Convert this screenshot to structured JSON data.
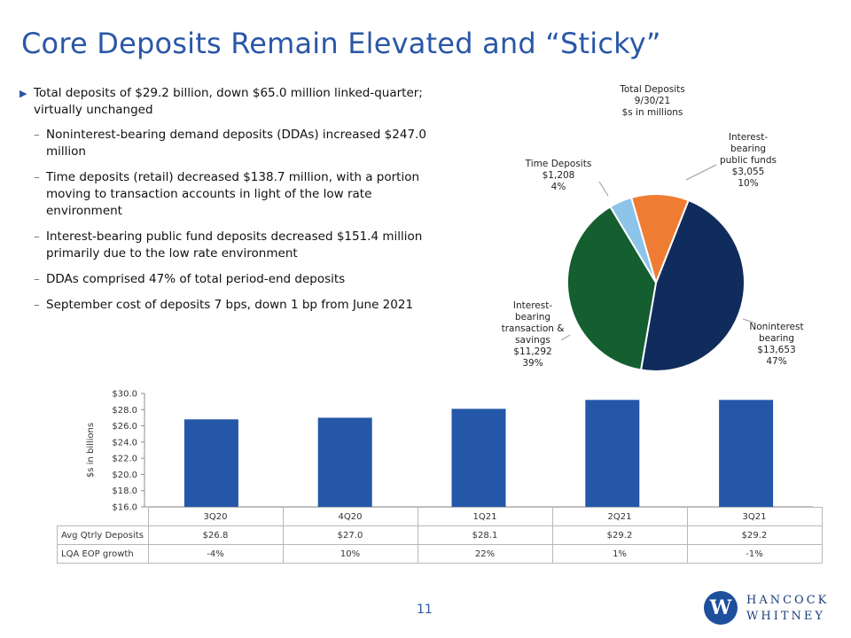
{
  "slide": {
    "title": "Core Deposits Remain Elevated and “Sticky”",
    "page_number": "11",
    "logo_line1": "HANCOCK",
    "logo_line2": "WHITNEY",
    "logo_mark": "W"
  },
  "bullets": {
    "main": "Total deposits of $29.2 billion, down $65.0 million linked-quarter; virtually unchanged",
    "subs": [
      "Noninterest-bearing demand deposits (DDAs) increased $247.0 million",
      "Time deposits (retail) decreased $138.7 million, with a portion moving to transaction accounts in light of the low rate environment",
      "Interest-bearing public fund deposits decreased $151.4 million primarily due to the low rate environment",
      "DDAs comprised 47% of total period-end deposits",
      "September cost of deposits 7 bps, down 1 bp from June 2021"
    ]
  },
  "chart_data": [
    {
      "type": "pie",
      "title": "Total Deposits",
      "subtitle_lines": [
        "9/30/21",
        "$s in millions"
      ],
      "slices": [
        {
          "label_lines": [
            "Noninterest",
            "bearing"
          ],
          "value": 13653,
          "value_label": "$13,653",
          "pct_label": "47%",
          "color": "#102c5c"
        },
        {
          "label_lines": [
            "Interest-",
            "bearing",
            "transaction &",
            "savings"
          ],
          "value": 11292,
          "value_label": "$11,292",
          "pct_label": "39%",
          "color": "#145e2f"
        },
        {
          "label_lines": [
            "Time Deposits"
          ],
          "value": 1208,
          "value_label": "$1,208",
          "pct_label": "4%",
          "color": "#8cc4ea"
        },
        {
          "label_lines": [
            "Interest-",
            "bearing",
            "public funds"
          ],
          "value": 3055,
          "value_label": "$3,055",
          "pct_label": "10%",
          "color": "#ee7c33"
        }
      ]
    },
    {
      "type": "bar",
      "categories": [
        "3Q20",
        "4Q20",
        "1Q21",
        "2Q21",
        "3Q21"
      ],
      "values": [
        26.8,
        27.0,
        28.1,
        29.2,
        29.2
      ],
      "ylabel": "$s in billions",
      "ylim": [
        16.0,
        30.0
      ],
      "yticks": [
        16.0,
        18.0,
        20.0,
        22.0,
        24.0,
        26.0,
        28.0,
        30.0
      ],
      "ytick_labels": [
        "$16.0",
        "$18.0",
        "$20.0",
        "$22.0",
        "$24.0",
        "$26.0",
        "$28.0",
        "$30.0"
      ],
      "bar_color": "#2457a8",
      "grid": false,
      "table_rows": [
        {
          "label": "Avg Qtrly Deposits",
          "cells": [
            "$26.8",
            "$27.0",
            "$28.1",
            "$29.2",
            "$29.2"
          ]
        },
        {
          "label": "LQA EOP growth",
          "cells": [
            "-4%",
            "10%",
            "22%",
            "1%",
            "-1%"
          ]
        }
      ]
    }
  ]
}
